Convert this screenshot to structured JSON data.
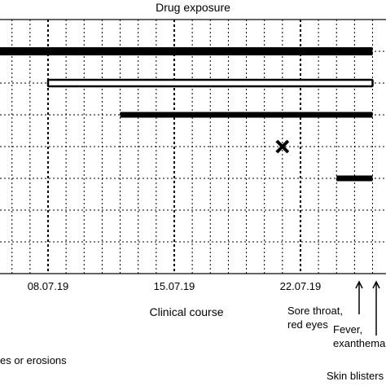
{
  "chart_data": {
    "type": "timeline",
    "title": "Drug exposure",
    "xlabel": "Clinical course",
    "ylabel": "",
    "grid": true,
    "x_axis": {
      "unit": "days",
      "day_range": [
        -4,
        26
      ],
      "major_ticks": [
        {
          "day": 8,
          "label": "08.07.19"
        },
        {
          "day": 15,
          "label": "15.07.19"
        },
        {
          "day": 22,
          "label": "22.07.19"
        }
      ]
    },
    "rows": 7,
    "series": [
      {
        "row": 1,
        "style": "solid-thick",
        "start_day": -4,
        "end_day": 26
      },
      {
        "row": 2,
        "style": "outline",
        "start_day": 8,
        "end_day": 26
      },
      {
        "row": 3,
        "style": "solid",
        "start_day": 12,
        "end_day": 26
      },
      {
        "row": 4,
        "style": "cross-marker",
        "day": 21
      },
      {
        "row": 5,
        "style": "solid",
        "start_day": 24,
        "end_day": 26
      }
    ],
    "annotations": [
      {
        "text_lines": [
          "Sore throat,",
          "red eyes"
        ],
        "day": 24
      },
      {
        "text_lines": [
          "Fever,",
          "exanthema"
        ],
        "day": 25
      },
      {
        "text_lines": [
          "Skin blisters"
        ],
        "day": 26
      },
      {
        "text_lines": [
          "es or erosions"
        ],
        "day": -4
      }
    ]
  }
}
